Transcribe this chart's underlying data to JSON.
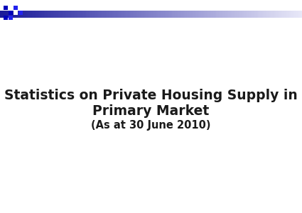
{
  "title_line1": "Statistics on Private Housing Supply in",
  "title_line2": "Primary Market",
  "subtitle": "(As at 30 June 2010)",
  "background_color": "#ffffff",
  "text_color": "#1a1a1a",
  "title_fontsize": 13.5,
  "subtitle_fontsize": 10.5,
  "header_bar_gradient_start": "#1a1a99",
  "header_bar_gradient_end": "#e8e8f8",
  "logo_blue_dark": "#0000bb",
  "logo_blue_mid": "#2222ee",
  "logo_white": "#ffffff"
}
